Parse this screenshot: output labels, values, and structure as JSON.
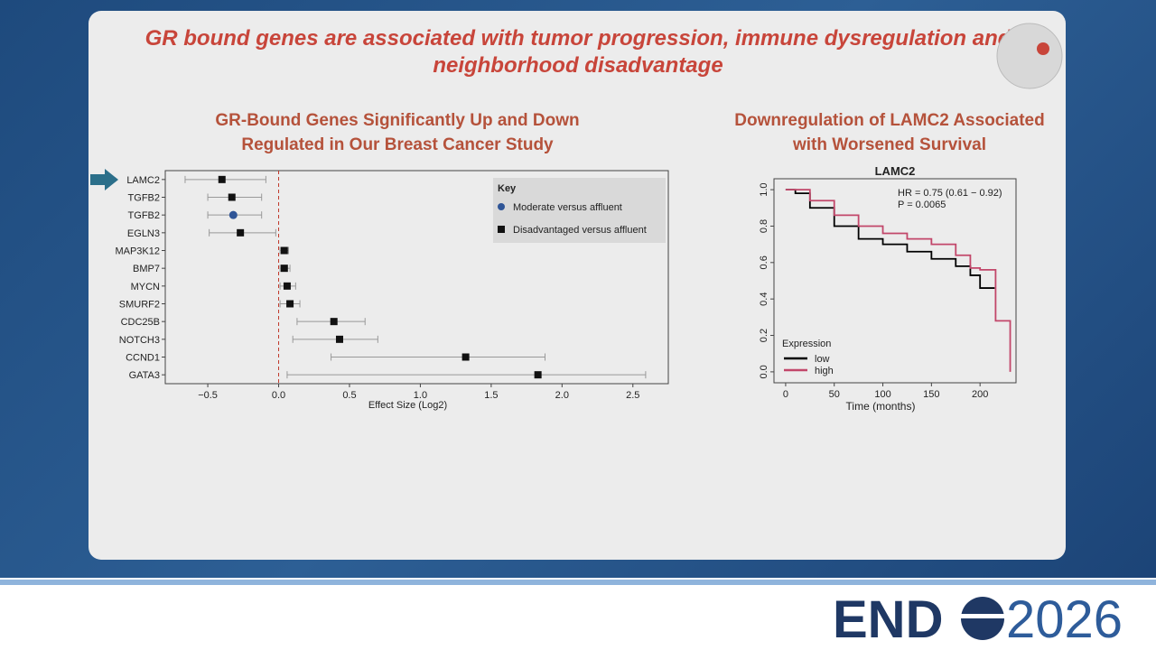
{
  "title": "GR bound genes are associated with tumor progression, immune dysregulation and neighborhood disadvantage",
  "logo": {
    "left": "END",
    "right": "2026"
  },
  "chart_data": [
    {
      "type": "forest",
      "title": "GR-Bound Genes Significantly Up and Down Regulated in Our Breast Cancer Study",
      "x_label": "Effect Size (Log2)",
      "categories": [
        "LAMC2",
        "TGFB2",
        "TGFB2",
        "EGLN3",
        "MAP3K12",
        "BMP7",
        "MYCN",
        "SMURF2",
        "CDC25B",
        "NOTCH3",
        "CCND1",
        "GATA3"
      ],
      "legend_title": "Key",
      "series": [
        {
          "name": "Moderate versus affluent",
          "color": "#2f5597",
          "marker": "circle",
          "values": [
            null,
            null,
            -0.32,
            null,
            null,
            null,
            null,
            null,
            null,
            null,
            null,
            null
          ],
          "ci_low": [
            null,
            null,
            -0.5,
            null,
            null,
            null,
            null,
            null,
            null,
            null,
            null,
            null
          ],
          "ci_high": [
            null,
            null,
            -0.12,
            null,
            null,
            null,
            null,
            null,
            null,
            null,
            null,
            null
          ]
        },
        {
          "name": "Disadvantaged versus affluent",
          "color": "#111111",
          "marker": "square",
          "values": [
            -0.4,
            -0.33,
            null,
            -0.27,
            0.04,
            0.04,
            0.06,
            0.08,
            0.39,
            0.43,
            1.32,
            1.83
          ],
          "ci_low": [
            -0.66,
            -0.5,
            null,
            -0.49,
            0.01,
            0.01,
            0.01,
            0.01,
            0.13,
            0.1,
            0.37,
            0.06
          ],
          "ci_high": [
            -0.09,
            -0.12,
            null,
            -0.02,
            0.07,
            0.08,
            0.12,
            0.15,
            0.61,
            0.7,
            1.88,
            2.59
          ]
        }
      ],
      "xlim": [
        -0.8,
        2.75
      ],
      "xticks": [
        {
          "value": -0.5,
          "label": "−0.5"
        },
        {
          "value": 0,
          "label": "0.0"
        },
        0.5,
        {
          "value": 1,
          "label": "1.0"
        },
        1.5,
        {
          "value": 2,
          "label": "2.0"
        },
        2.5
      ],
      "reference_line": 0,
      "reference_color": "#c0392b"
    },
    {
      "type": "step",
      "title": "Downregulation of LAMC2 Associated with Worsened Survival",
      "plot_title": "LAMC2",
      "x_label": "Time (months)",
      "annotations": [
        "HR = 0.75 (0.61 − 0.92)",
        "P = 0.0065"
      ],
      "legend_title": "Expression",
      "series": [
        {
          "name": "low",
          "color": "#000000",
          "x": [
            0,
            10,
            25,
            50,
            75,
            100,
            125,
            150,
            175,
            190,
            200,
            215
          ],
          "values": [
            1.0,
            0.98,
            0.9,
            0.8,
            0.73,
            0.7,
            0.66,
            0.62,
            0.58,
            0.53,
            0.46,
            0.46
          ]
        },
        {
          "name": "high",
          "color": "#c2476a",
          "x": [
            0,
            25,
            50,
            75,
            100,
            125,
            150,
            175,
            190,
            200,
            216,
            231
          ],
          "values": [
            1.0,
            0.94,
            0.86,
            0.8,
            0.76,
            0.73,
            0.7,
            0.64,
            0.57,
            0.56,
            0.28,
            0.0
          ]
        }
      ],
      "xlim": [
        -12,
        237
      ],
      "ylim": [
        -0.06,
        1.06
      ],
      "xticks": [
        0,
        50,
        100,
        150,
        200
      ],
      "yticks": [
        {
          "value": 0,
          "label": "0.0"
        },
        0.2,
        0.4,
        0.6,
        0.8,
        {
          "value": 1,
          "label": "1.0"
        }
      ]
    }
  ]
}
